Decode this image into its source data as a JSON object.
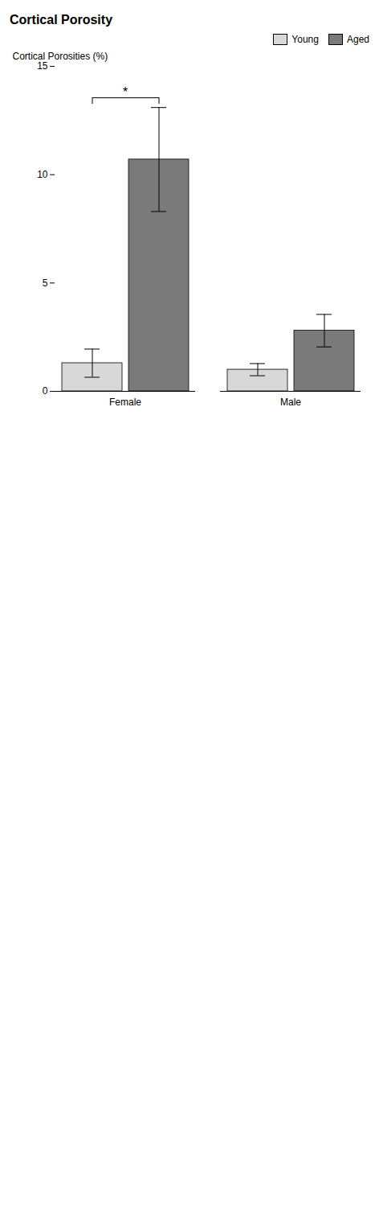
{
  "chart_data": {
    "type": "bar",
    "title": "Cortical Porosity",
    "ylabel": "Cortical Porosities (%)",
    "categories": [
      "Female",
      "Male"
    ],
    "series": [
      {
        "name": "Young",
        "color": "#d8d8d8",
        "values": [
          1.3,
          1.0
        ],
        "errors": [
          0.65,
          0.28
        ]
      },
      {
        "name": "Aged",
        "color": "#7a7a7a",
        "values": [
          10.7,
          2.8
        ],
        "errors": [
          2.4,
          0.75
        ]
      }
    ],
    "ylim": [
      0,
      15
    ],
    "yticks": [
      0,
      5,
      10,
      15
    ],
    "grid": false,
    "legend": "upper right",
    "annotations": [
      {
        "text": "*",
        "category": "Female"
      }
    ]
  }
}
